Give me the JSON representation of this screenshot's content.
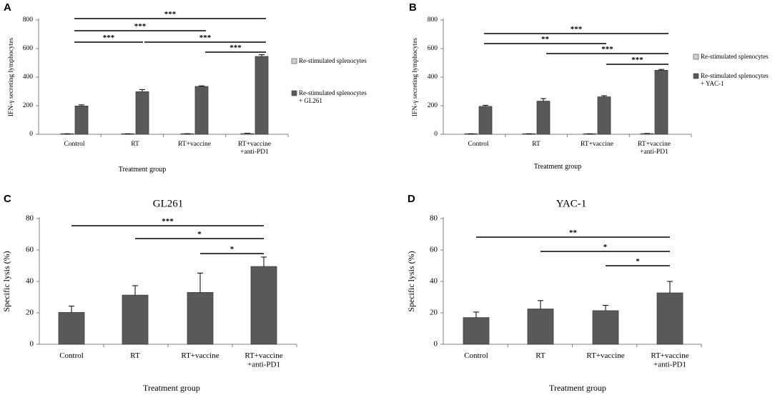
{
  "figure": {
    "panels": [
      {
        "letter": "A"
      },
      {
        "letter": "B"
      },
      {
        "letter": "C"
      },
      {
        "letter": "D"
      }
    ]
  },
  "chart_data": [
    {
      "panel": "A",
      "type": "bar",
      "title": "",
      "xlabel": "Treatment group",
      "ylabel": "IFN-γ secreting lymphocytes",
      "ylim": [
        0,
        800
      ],
      "yticks": [
        0,
        200,
        400,
        600,
        800
      ],
      "categories": [
        "Control",
        "RT",
        "RT+vaccine",
        "RT+vaccine\n+anti-PD1"
      ],
      "series": [
        {
          "name": "Re-stimulated splenocytes",
          "color": "#d0d0d0",
          "values": [
            2,
            2,
            3,
            5
          ],
          "errors": [
            1,
            1,
            1,
            2
          ]
        },
        {
          "name": "Re-stimulated splenocytes\n+ GL261",
          "color": "#595959",
          "values": [
            198,
            298,
            335,
            545
          ],
          "errors": [
            8,
            15,
            4,
            12
          ]
        }
      ],
      "legend": "right",
      "significance": [
        {
          "from": 0,
          "to": 3,
          "label": "***"
        },
        {
          "from": 0,
          "to": 2,
          "label": "***"
        },
        {
          "from": 0,
          "to": 1,
          "label": "***"
        },
        {
          "from": 1,
          "to": 3,
          "label": "***"
        },
        {
          "from": 2,
          "to": 3,
          "label": "***"
        }
      ]
    },
    {
      "panel": "B",
      "type": "bar",
      "title": "",
      "xlabel": "Treatment group",
      "ylabel": "IFN-γ secreting lymphocytes",
      "ylim": [
        0,
        800
      ],
      "yticks": [
        0,
        200,
        400,
        600,
        800
      ],
      "categories": [
        "Control",
        "RT",
        "RT+vaccine",
        "RT+vaccine\n+anti-PD1"
      ],
      "series": [
        {
          "name": "Re-stimulated splenocytes",
          "color": "#d0d0d0",
          "values": [
            2,
            2,
            2,
            5
          ],
          "errors": [
            1,
            1,
            1,
            1
          ]
        },
        {
          "name": "Re-stimulated splenocytes\n+ YAC-1",
          "color": "#595959",
          "values": [
            195,
            232,
            262,
            448
          ],
          "errors": [
            8,
            18,
            8,
            6
          ]
        }
      ],
      "legend": "right",
      "significance": [
        {
          "from": 0,
          "to": 3,
          "label": "***"
        },
        {
          "from": 0,
          "to": 2,
          "label": "**"
        },
        {
          "from": 1,
          "to": 3,
          "label": "***"
        },
        {
          "from": 2,
          "to": 3,
          "label": "***"
        }
      ]
    },
    {
      "panel": "C",
      "type": "bar",
      "title": "GL261",
      "xlabel": "Treatment group",
      "ylabel": "Specific lysis (%)",
      "ylim": [
        0,
        80
      ],
      "yticks": [
        0,
        20,
        40,
        60,
        80
      ],
      "categories": [
        "Control",
        "RT",
        "RT+vaccine",
        "RT+vaccine\n+anti-PD1"
      ],
      "series": [
        {
          "name": "Specific lysis",
          "color": "#595959",
          "values": [
            20.3,
            31.3,
            33,
            49.5
          ],
          "errors": [
            4,
            6,
            12.3,
            6
          ]
        }
      ],
      "legend": "none",
      "significance": [
        {
          "from": 0,
          "to": 3,
          "label": "***"
        },
        {
          "from": 1,
          "to": 3,
          "label": "*"
        },
        {
          "from": 2,
          "to": 3,
          "label": "*"
        }
      ]
    },
    {
      "panel": "D",
      "type": "bar",
      "title": "YAC-1",
      "xlabel": "Treatment group",
      "ylabel": "Specific lysis (%)",
      "ylim": [
        0,
        80
      ],
      "yticks": [
        0,
        20,
        40,
        60,
        80
      ],
      "categories": [
        "Control",
        "RT",
        "RT+vaccine",
        "RT+vaccine\n+anti-PD1"
      ],
      "series": [
        {
          "name": "Specific lysis",
          "color": "#595959",
          "values": [
            17,
            22.5,
            21.4,
            32.7
          ],
          "errors": [
            3.5,
            5.3,
            3.4,
            7.3
          ]
        }
      ],
      "legend": "none",
      "significance": [
        {
          "from": 0,
          "to": 3,
          "label": "**"
        },
        {
          "from": 1,
          "to": 3,
          "label": "*"
        },
        {
          "from": 2,
          "to": 3,
          "label": "*"
        }
      ]
    }
  ]
}
